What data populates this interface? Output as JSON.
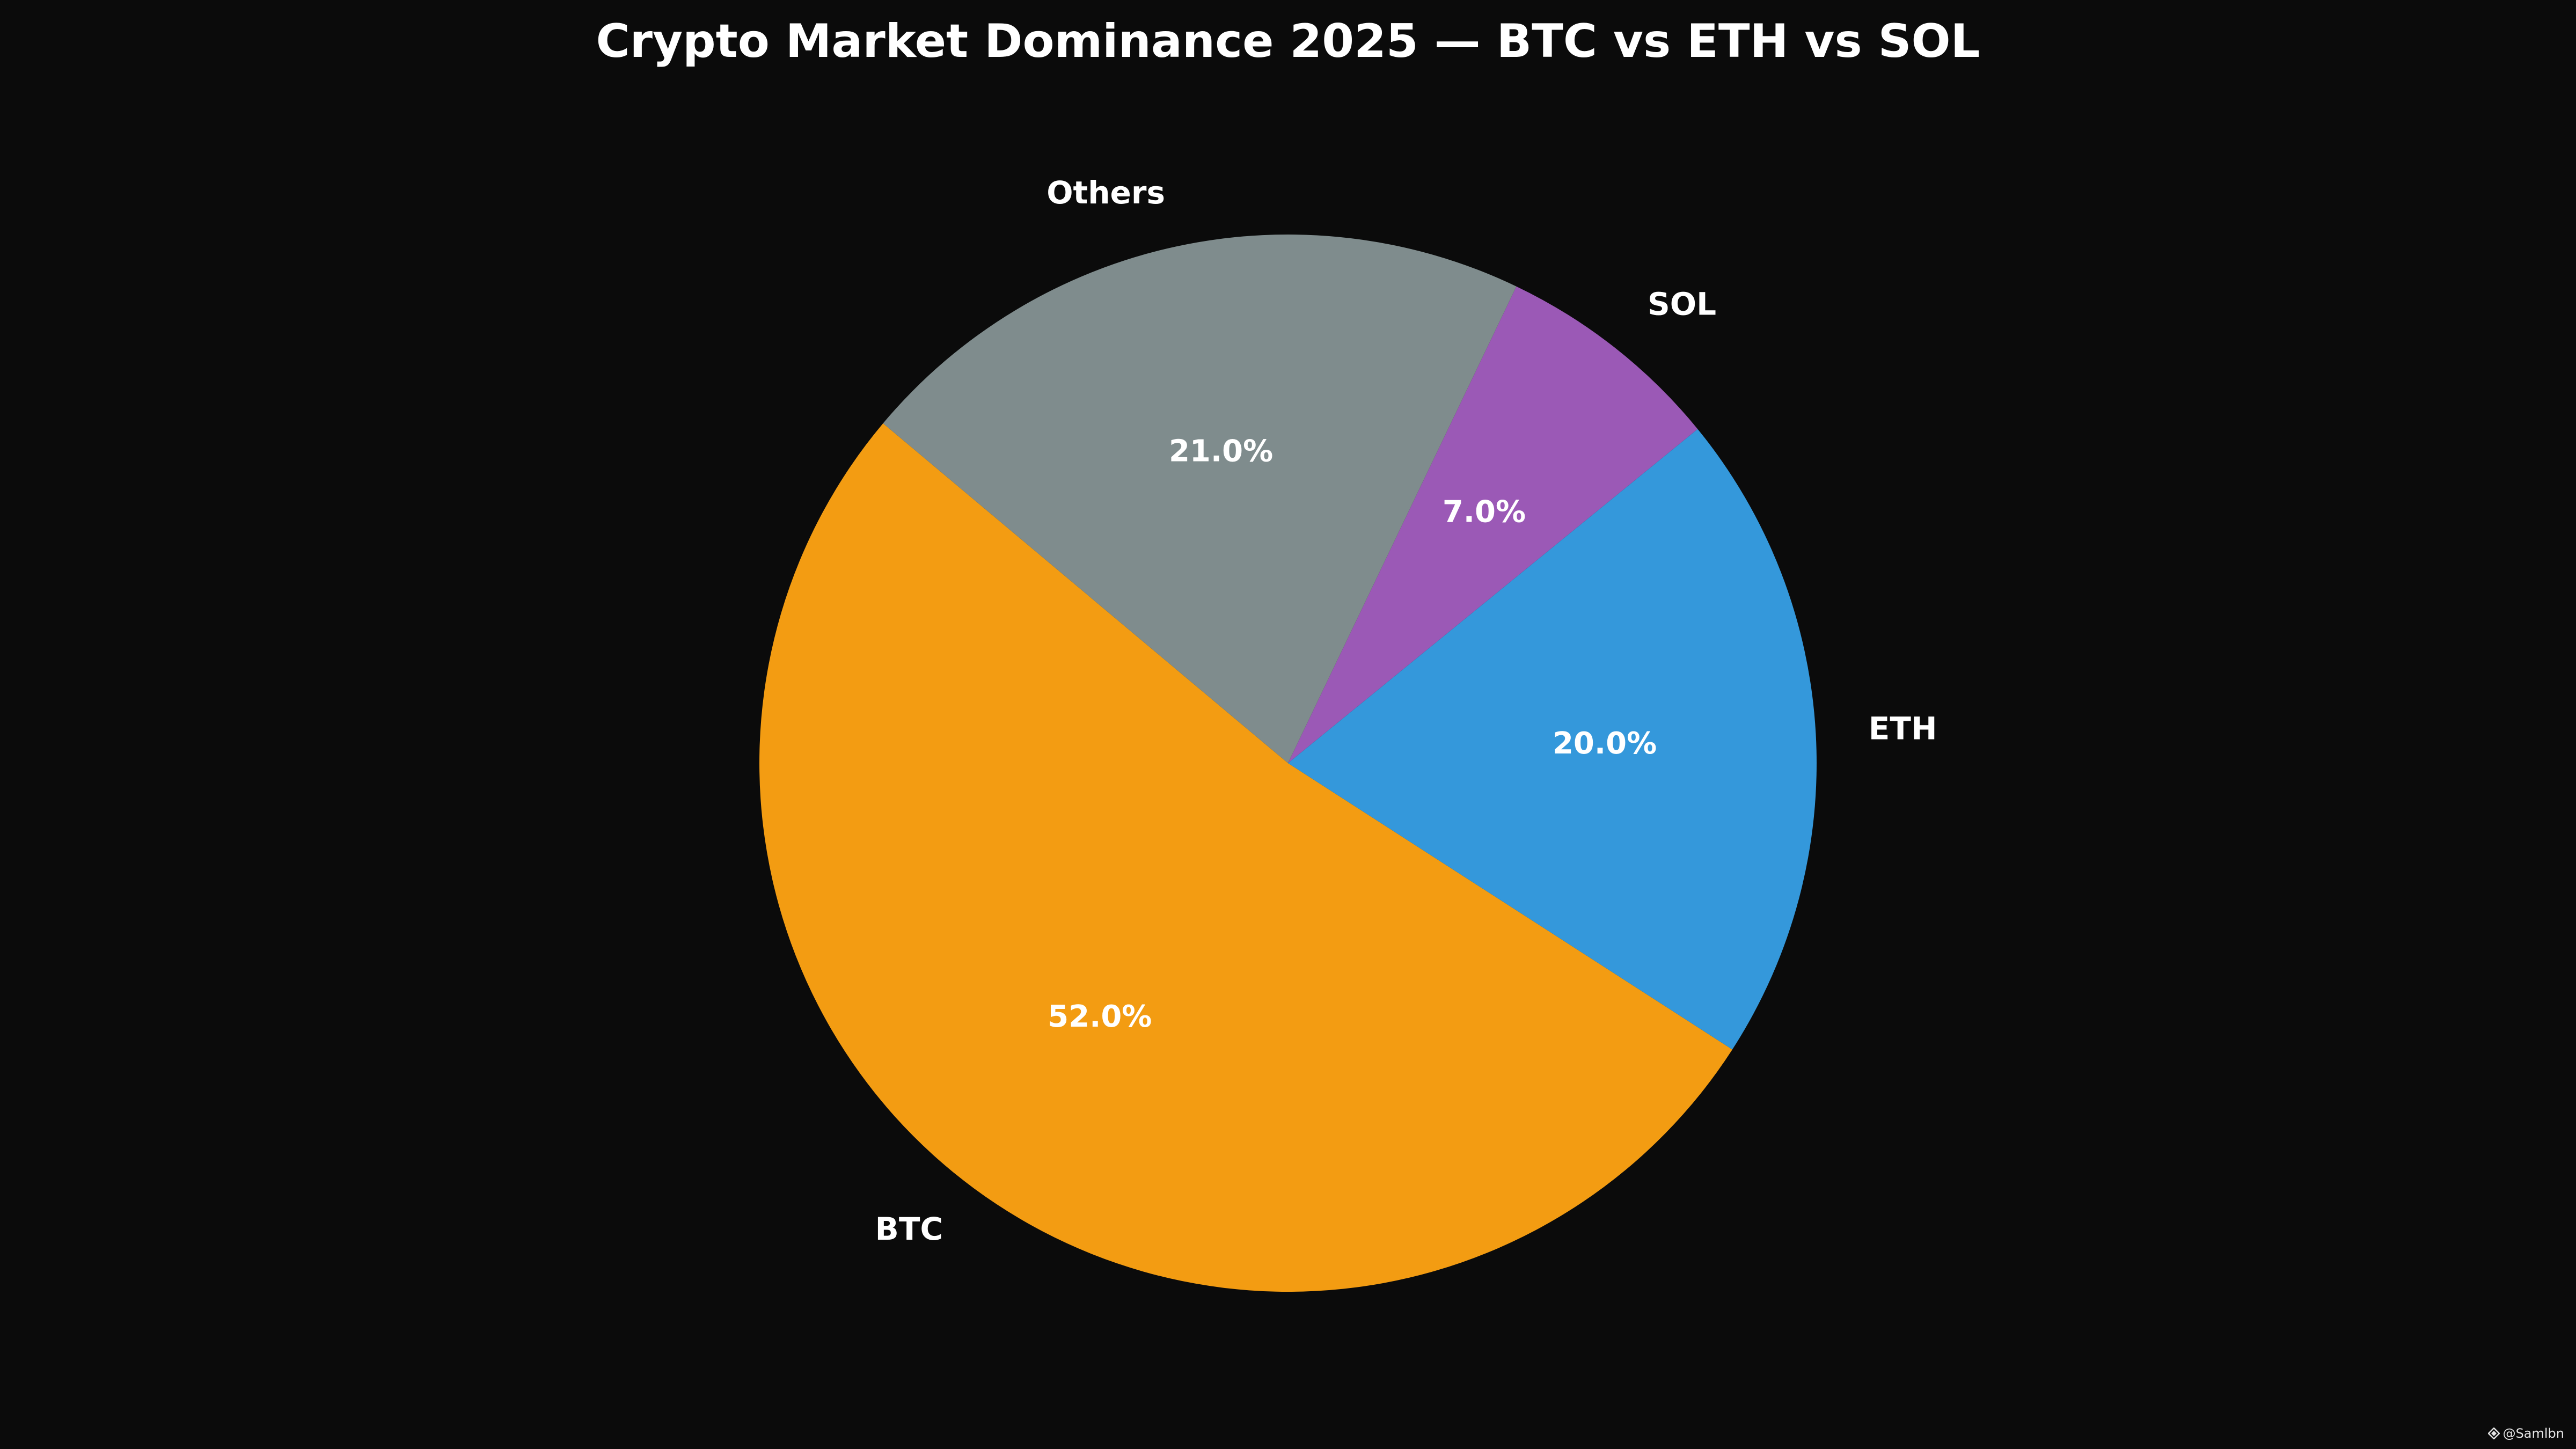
{
  "chart_data": {
    "type": "pie",
    "title": "Crypto Market Dominance 2025 — BTC vs ETH vs SOL",
    "slices": [
      {
        "label": "BTC",
        "value": 52.0,
        "pct_label": "52.0%",
        "color": "#f39c12"
      },
      {
        "label": "ETH",
        "value": 20.0,
        "pct_label": "20.0%",
        "color": "#3498db"
      },
      {
        "label": "SOL",
        "value": 7.0,
        "pct_label": "7.0%",
        "color": "#9b59b6"
      },
      {
        "label": "Others",
        "value": 21.0,
        "pct_label": "21.0%",
        "color": "#7f8c8d"
      }
    ],
    "start_angle_deg": 140,
    "direction": "counterclockwise",
    "legend": "none"
  },
  "watermark": {
    "text": "@Samlbn",
    "icon": "diamond-logo-icon"
  },
  "colors": {
    "background": "#0b0b0b",
    "text": "#ffffff"
  }
}
